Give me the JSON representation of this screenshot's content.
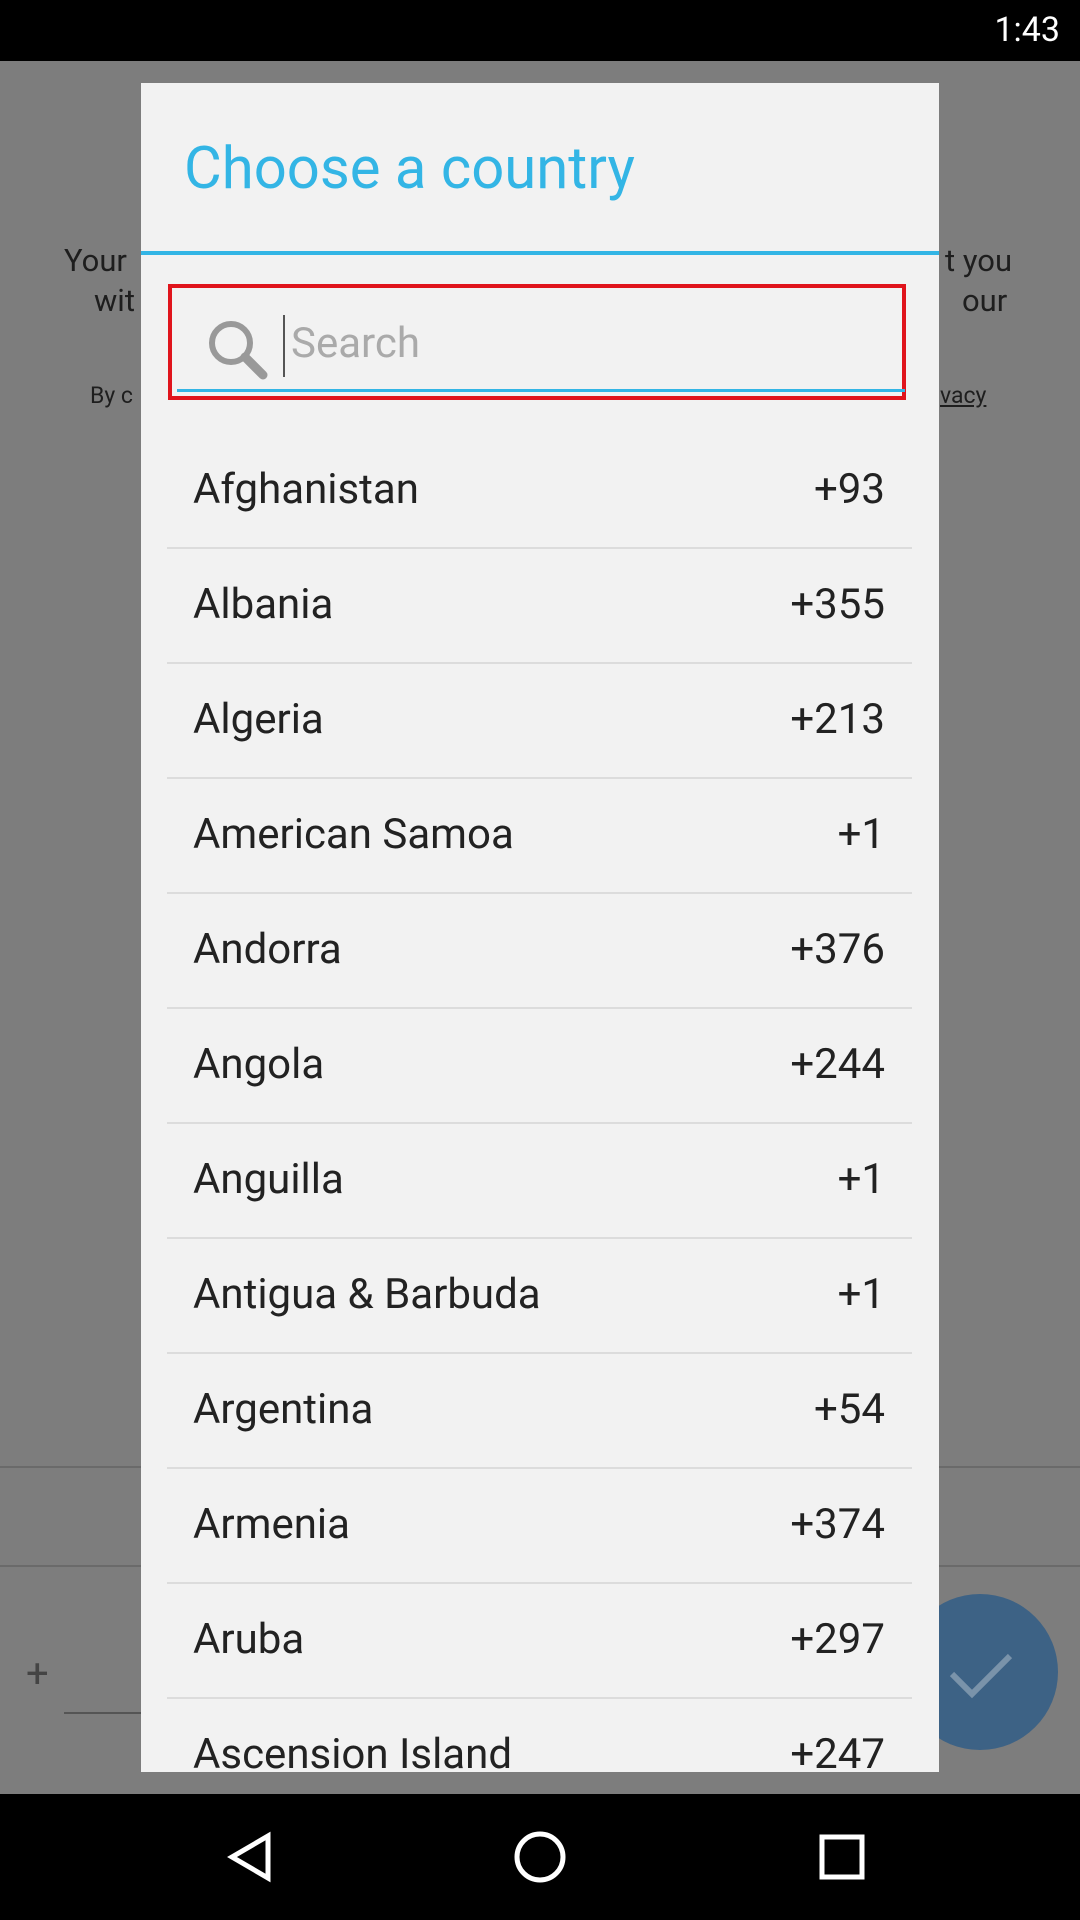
{
  "status_bar": {
    "time": "1:43"
  },
  "background": {
    "texts": [
      "Your",
      "wit",
      "t you",
      "our",
      "By c",
      "vacy",
      "+"
    ]
  },
  "dialog": {
    "title": "Choose a country",
    "search_placeholder": "Search",
    "rows": [
      [
        "Afghanistan",
        "+93"
      ],
      [
        "Albania",
        "+355"
      ],
      [
        "Algeria",
        "+213"
      ],
      [
        "American Samoa",
        "+1"
      ],
      [
        "Andorra",
        "+376"
      ],
      [
        "Angola",
        "+244"
      ],
      [
        "Anguilla",
        "+1"
      ],
      [
        "Antigua & Barbuda",
        "+1"
      ],
      [
        "Argentina",
        "+54"
      ],
      [
        "Armenia",
        "+374"
      ],
      [
        "Aruba",
        "+297"
      ],
      [
        "Ascension Island",
        "+247"
      ]
    ]
  }
}
